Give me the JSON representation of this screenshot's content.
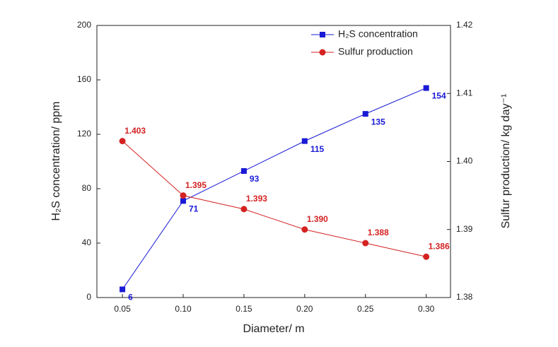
{
  "chart_data": {
    "type": "line",
    "x_label": "Diameter/ m",
    "y_label": "H₂S concentration/ ppm",
    "y2_label": "Sulfur production/ kg day⁻¹",
    "x": [
      0.05,
      0.1,
      0.15,
      0.2,
      0.25,
      0.3
    ],
    "series": [
      {
        "name": "H₂S concentration",
        "color": "#1a1ad6",
        "marker": "square",
        "values": [
          6,
          71,
          93,
          115,
          135,
          154
        ]
      },
      {
        "name": "Sulfur production",
        "color": "#d42222",
        "marker": "circle",
        "axis": "y2",
        "values": [
          1.403,
          1.395,
          1.393,
          1.39,
          1.388,
          1.386
        ],
        "value_labels": [
          "1.403",
          "1.395",
          "1.393",
          "1.390",
          "1.388",
          "1.386"
        ]
      }
    ],
    "xlim": [
      0.029,
      0.32
    ],
    "xticks": [
      {
        "value": 0.05,
        "label": "0.05"
      },
      {
        "value": 0.1,
        "label": "0.10"
      },
      {
        "value": 0.15,
        "label": "0.15"
      },
      {
        "value": 0.2,
        "label": "0.20"
      },
      {
        "value": 0.25,
        "label": "0.25"
      },
      {
        "value": 0.3,
        "label": "0.30"
      }
    ],
    "ylim": [
      0,
      200
    ],
    "yticks": [
      0,
      40,
      80,
      120,
      160,
      200
    ],
    "y2lim": [
      1.38,
      1.42
    ],
    "y2ticks": [
      1.38,
      1.39,
      {
        "value": 1.4,
        "label": "1.40"
      },
      1.41,
      1.42
    ],
    "legend": "upper right"
  }
}
